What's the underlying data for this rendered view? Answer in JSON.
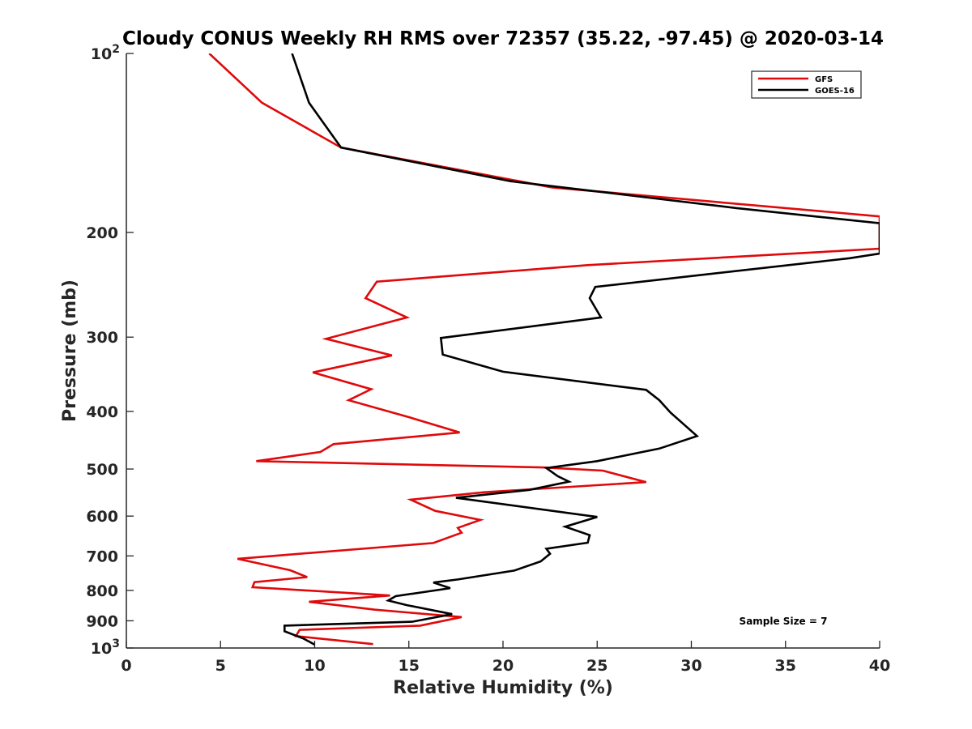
{
  "chart_data": {
    "type": "line",
    "title": "Cloudy CONUS Weekly RH RMS over 72357 (35.22, -97.45) @ 2020-03-14",
    "xlabel": "Relative Humidity (%)",
    "ylabel": "Pressure (mb)",
    "xlim": [
      0,
      40
    ],
    "ylim": [
      100,
      1000
    ],
    "y_scale": "log",
    "y_reversed": true,
    "grid": false,
    "legend_position": "top-right",
    "xticks": [
      {
        "value": 0,
        "label": "0"
      },
      {
        "value": 5,
        "label": "5"
      },
      {
        "value": 10,
        "label": "10"
      },
      {
        "value": 15,
        "label": "15"
      },
      {
        "value": 20,
        "label": "20"
      },
      {
        "value": 25,
        "label": "25"
      },
      {
        "value": 30,
        "label": "30"
      },
      {
        "value": 35,
        "label": "35"
      },
      {
        "value": 40,
        "label": "40"
      }
    ],
    "yticks": [
      {
        "value": 100,
        "label": "10",
        "sup": "2"
      },
      {
        "value": 200,
        "label": "200"
      },
      {
        "value": 300,
        "label": "300"
      },
      {
        "value": 400,
        "label": "400"
      },
      {
        "value": 500,
        "label": "500"
      },
      {
        "value": 600,
        "label": "600"
      },
      {
        "value": 700,
        "label": "700"
      },
      {
        "value": 800,
        "label": "800"
      },
      {
        "value": 900,
        "label": "900"
      },
      {
        "value": 1000,
        "label": "10",
        "sup": "3"
      }
    ],
    "annotation": "Sample Size = 7",
    "series": [
      {
        "name": "GFS",
        "color": "#e0090b",
        "points": [
          [
            4.4,
            100
          ],
          [
            7.2,
            121
          ],
          [
            11.4,
            144
          ],
          [
            22.6,
            168
          ],
          [
            40.0,
            188
          ],
          [
            40.0,
            213
          ],
          [
            24.5,
            227
          ],
          [
            13.3,
            242
          ],
          [
            12.7,
            258
          ],
          [
            14.9,
            278
          ],
          [
            10.6,
            302
          ],
          [
            14.1,
            322
          ],
          [
            9.9,
            344
          ],
          [
            13.0,
            367
          ],
          [
            11.8,
            383
          ],
          [
            15.0,
            409
          ],
          [
            17.7,
            434
          ],
          [
            11.0,
            454
          ],
          [
            10.3,
            468
          ],
          [
            6.9,
            485
          ],
          [
            22.1,
            497
          ],
          [
            25.3,
            503
          ],
          [
            27.6,
            526
          ],
          [
            19.0,
            547
          ],
          [
            15.1,
            563
          ],
          [
            16.4,
            588
          ],
          [
            18.8,
            609
          ],
          [
            17.6,
            628
          ],
          [
            17.8,
            640
          ],
          [
            16.3,
            666
          ],
          [
            5.9,
            708
          ],
          [
            8.7,
            740
          ],
          [
            9.6,
            760
          ],
          [
            6.8,
            775
          ],
          [
            6.7,
            790
          ],
          [
            14.0,
            816
          ],
          [
            9.7,
            836
          ],
          [
            13.2,
            862
          ],
          [
            17.8,
            887
          ],
          [
            15.6,
            917
          ],
          [
            9.2,
            932
          ],
          [
            9.0,
            955
          ],
          [
            13.1,
            985
          ]
        ]
      },
      {
        "name": "GOES-16",
        "color": "#000000",
        "points": [
          [
            8.8,
            100
          ],
          [
            9.7,
            121
          ],
          [
            11.4,
            144
          ],
          [
            20.4,
            164
          ],
          [
            32.4,
            182
          ],
          [
            40.0,
            193
          ],
          [
            40.0,
            217
          ],
          [
            38.4,
            221
          ],
          [
            24.9,
            247
          ],
          [
            24.6,
            258
          ],
          [
            25.2,
            278
          ],
          [
            16.7,
            301
          ],
          [
            16.8,
            321
          ],
          [
            20.0,
            343
          ],
          [
            27.6,
            368
          ],
          [
            28.3,
            383
          ],
          [
            28.9,
            402
          ],
          [
            30.3,
            440
          ],
          [
            28.3,
            462
          ],
          [
            25.0,
            485
          ],
          [
            22.3,
            498
          ],
          [
            22.9,
            514
          ],
          [
            23.5,
            525
          ],
          [
            21.4,
            542
          ],
          [
            17.5,
            559
          ],
          [
            25.0,
            602
          ],
          [
            23.3,
            625
          ],
          [
            24.6,
            646
          ],
          [
            24.5,
            665
          ],
          [
            22.3,
            681
          ],
          [
            22.5,
            694
          ],
          [
            22.0,
            715
          ],
          [
            20.6,
            741
          ],
          [
            17.6,
            767
          ],
          [
            16.3,
            776
          ],
          [
            17.2,
            793
          ],
          [
            14.3,
            818
          ],
          [
            13.9,
            832
          ],
          [
            14.9,
            847
          ],
          [
            17.3,
            877
          ],
          [
            15.2,
            903
          ],
          [
            8.4,
            917
          ],
          [
            8.4,
            937
          ],
          [
            9.4,
            964
          ],
          [
            10.0,
            987
          ]
        ]
      }
    ]
  }
}
